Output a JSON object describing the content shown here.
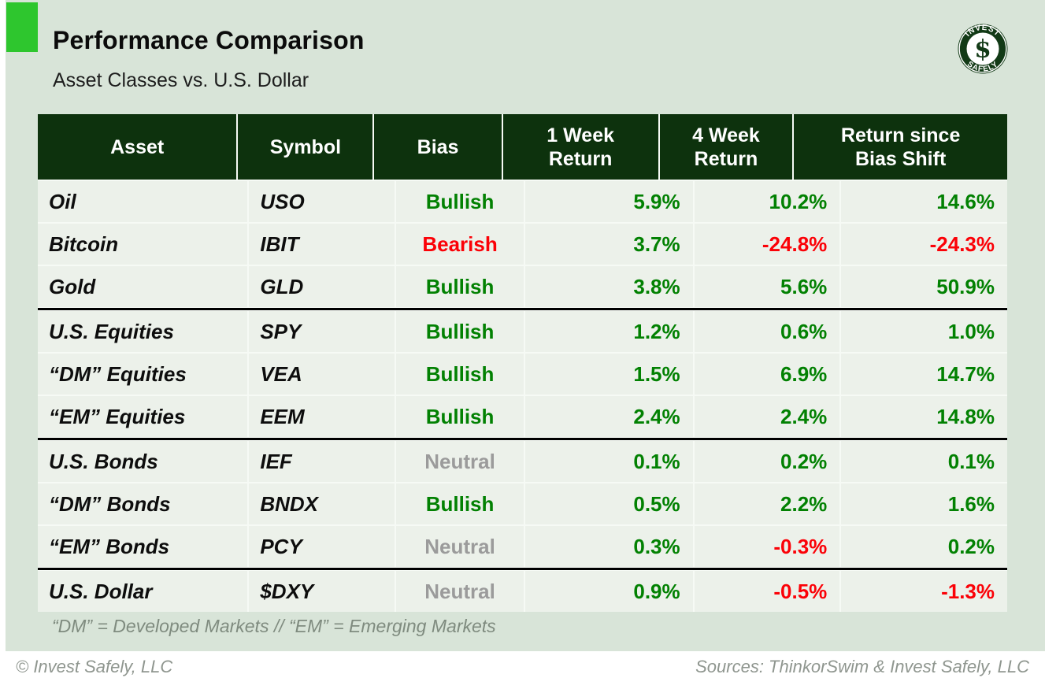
{
  "header": {
    "title": "Performance Comparison",
    "subtitle": "Asset Classes vs. U.S. Dollar"
  },
  "logo": {
    "top_text": "INVEST",
    "bottom_text": "SAFELY",
    "symbol": "$"
  },
  "table": {
    "columns": [
      {
        "label": "Asset",
        "lines": [
          "Asset"
        ]
      },
      {
        "label": "Symbol",
        "lines": [
          "Symbol"
        ]
      },
      {
        "label": "Bias",
        "lines": [
          "Bias"
        ]
      },
      {
        "label": "1 Week Return",
        "lines": [
          "1 Week",
          "Return"
        ]
      },
      {
        "label": "4 Week Return",
        "lines": [
          "4 Week",
          "Return"
        ]
      },
      {
        "label": "Return since Bias Shift",
        "lines": [
          "Return since",
          "Bias Shift"
        ]
      }
    ],
    "rows": [
      {
        "asset": "Oil",
        "symbol": "USO",
        "bias": "Bullish",
        "bias_tone": "bullish",
        "returns": [
          {
            "text": "5.9%",
            "tone": "pos"
          },
          {
            "text": "10.2%",
            "tone": "pos"
          },
          {
            "text": "14.6%",
            "tone": "pos"
          }
        ],
        "group_end": false
      },
      {
        "asset": "Bitcoin",
        "symbol": "IBIT",
        "bias": "Bearish",
        "bias_tone": "bearish",
        "returns": [
          {
            "text": "3.7%",
            "tone": "pos"
          },
          {
            "text": "-24.8%",
            "tone": "neg"
          },
          {
            "text": "-24.3%",
            "tone": "neg"
          }
        ],
        "group_end": false
      },
      {
        "asset": "Gold",
        "symbol": "GLD",
        "bias": "Bullish",
        "bias_tone": "bullish",
        "returns": [
          {
            "text": "3.8%",
            "tone": "pos"
          },
          {
            "text": "5.6%",
            "tone": "pos"
          },
          {
            "text": "50.9%",
            "tone": "pos"
          }
        ],
        "group_end": true
      },
      {
        "asset": "U.S. Equities",
        "symbol": "SPY",
        "bias": "Bullish",
        "bias_tone": "bullish",
        "returns": [
          {
            "text": "1.2%",
            "tone": "pos"
          },
          {
            "text": "0.6%",
            "tone": "pos"
          },
          {
            "text": "1.0%",
            "tone": "pos"
          }
        ],
        "group_end": false
      },
      {
        "asset": "“DM” Equities",
        "symbol": "VEA",
        "bias": "Bullish",
        "bias_tone": "bullish",
        "returns": [
          {
            "text": "1.5%",
            "tone": "pos"
          },
          {
            "text": "6.9%",
            "tone": "pos"
          },
          {
            "text": "14.7%",
            "tone": "pos"
          }
        ],
        "group_end": false
      },
      {
        "asset": "“EM” Equities",
        "symbol": "EEM",
        "bias": "Bullish",
        "bias_tone": "bullish",
        "returns": [
          {
            "text": "2.4%",
            "tone": "pos"
          },
          {
            "text": "2.4%",
            "tone": "pos"
          },
          {
            "text": "14.8%",
            "tone": "pos"
          }
        ],
        "group_end": true
      },
      {
        "asset": "U.S. Bonds",
        "symbol": "IEF",
        "bias": "Neutral",
        "bias_tone": "neutral",
        "returns": [
          {
            "text": "0.1%",
            "tone": "pos"
          },
          {
            "text": "0.2%",
            "tone": "pos"
          },
          {
            "text": "0.1%",
            "tone": "pos"
          }
        ],
        "group_end": false
      },
      {
        "asset": "“DM” Bonds",
        "symbol": "BNDX",
        "bias": "Bullish",
        "bias_tone": "bullish",
        "returns": [
          {
            "text": "0.5%",
            "tone": "pos"
          },
          {
            "text": "2.2%",
            "tone": "pos"
          },
          {
            "text": "1.6%",
            "tone": "pos"
          }
        ],
        "group_end": false
      },
      {
        "asset": "“EM” Bonds",
        "symbol": "PCY",
        "bias": "Neutral",
        "bias_tone": "neutral",
        "returns": [
          {
            "text": "0.3%",
            "tone": "pos"
          },
          {
            "text": "-0.3%",
            "tone": "neg"
          },
          {
            "text": "0.2%",
            "tone": "pos"
          }
        ],
        "group_end": true
      },
      {
        "asset": "U.S. Dollar",
        "symbol": "$DXY",
        "bias": "Neutral",
        "bias_tone": "neutral",
        "returns": [
          {
            "text": "0.9%",
            "tone": "pos"
          },
          {
            "text": "-0.5%",
            "tone": "neg"
          },
          {
            "text": "-1.3%",
            "tone": "neg"
          }
        ],
        "group_end": false
      }
    ]
  },
  "footnote": "“DM” = Developed Markets // “EM” = Emerging Markets",
  "footer": {
    "left": "© Invest Safely, LLC",
    "right": "Sources: ThinkorSwim & Invest Safely, LLC"
  },
  "colors": {
    "accent_green": "#2ec62e",
    "header_dark_green": "#0d320d",
    "positive": "#028102",
    "negative": "#fb0107",
    "neutral": "#9b9b9b",
    "page_background": "#d8e4d8",
    "row_background": "#ecf1ea"
  }
}
